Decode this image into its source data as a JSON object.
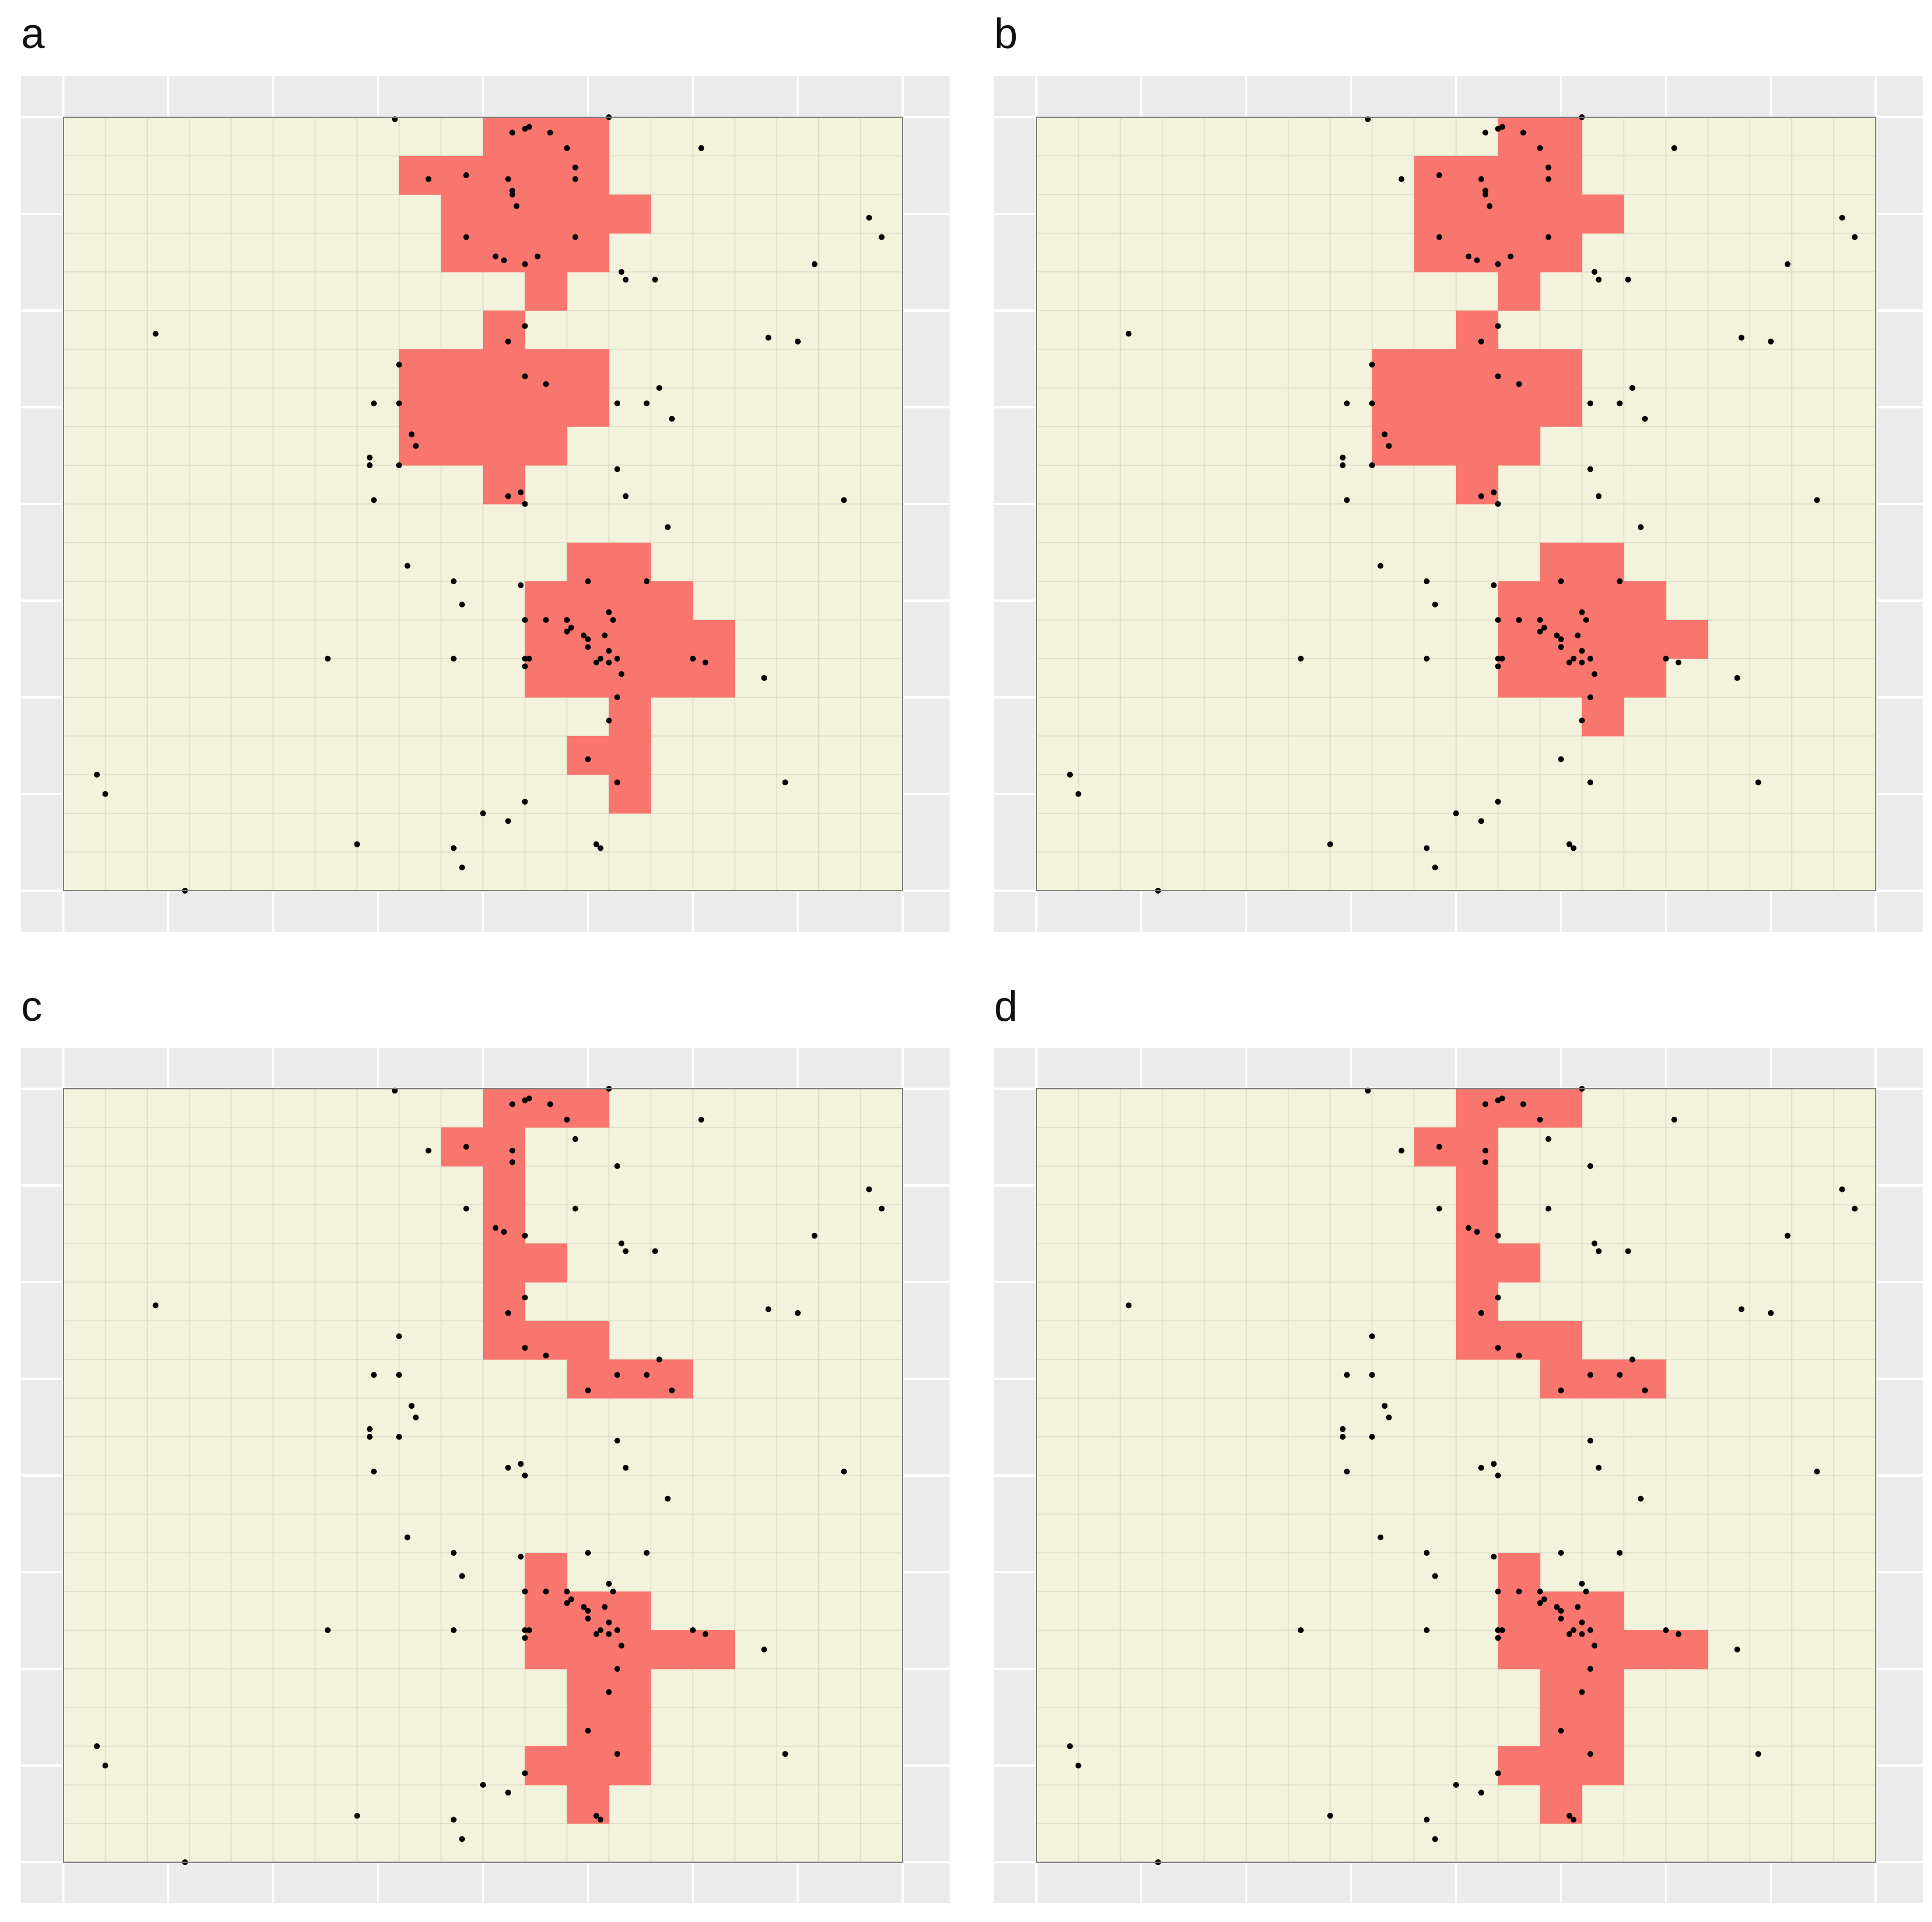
{
  "colors": {
    "region": "#f8766d",
    "field": "#f3f2dc",
    "panel_bg": "#ebebeb",
    "grid": "#dcdccb",
    "point": "#000000"
  },
  "chart_data": [
    {
      "type": "heatmap",
      "label": "a",
      "xlim": [
        0,
        20
      ],
      "ylim": [
        0,
        20
      ],
      "cells": [
        [
          10,
          0
        ],
        [
          11,
          0
        ],
        [
          12,
          0
        ],
        [
          8,
          1
        ],
        [
          9,
          1
        ],
        [
          10,
          1
        ],
        [
          11,
          1
        ],
        [
          12,
          1
        ],
        [
          9,
          2
        ],
        [
          10,
          2
        ],
        [
          11,
          2
        ],
        [
          12,
          2
        ],
        [
          13,
          2
        ],
        [
          9,
          3
        ],
        [
          10,
          3
        ],
        [
          11,
          3
        ],
        [
          12,
          3
        ],
        [
          11,
          4
        ],
        [
          10,
          5
        ],
        [
          8,
          6
        ],
        [
          9,
          6
        ],
        [
          10,
          6
        ],
        [
          11,
          6
        ],
        [
          12,
          6
        ],
        [
          8,
          7
        ],
        [
          9,
          7
        ],
        [
          10,
          7
        ],
        [
          11,
          7
        ],
        [
          12,
          7
        ],
        [
          8,
          8
        ],
        [
          9,
          8
        ],
        [
          10,
          8
        ],
        [
          11,
          8
        ],
        [
          10,
          9
        ],
        [
          12,
          11
        ],
        [
          13,
          11
        ],
        [
          11,
          12
        ],
        [
          12,
          12
        ],
        [
          13,
          12
        ],
        [
          14,
          12
        ],
        [
          11,
          13
        ],
        [
          12,
          13
        ],
        [
          13,
          13
        ],
        [
          14,
          13
        ],
        [
          15,
          13
        ],
        [
          11,
          14
        ],
        [
          12,
          14
        ],
        [
          13,
          14
        ],
        [
          14,
          14
        ],
        [
          15,
          14
        ],
        [
          13,
          15
        ],
        [
          12,
          16
        ],
        [
          13,
          16
        ],
        [
          13,
          17
        ]
      ],
      "points": []
    },
    {
      "type": "heatmap",
      "label": "b",
      "xlim": [
        0,
        20
      ],
      "ylim": [
        0,
        20
      ],
      "cells": [
        [
          11,
          0
        ],
        [
          12,
          0
        ],
        [
          9,
          1
        ],
        [
          10,
          1
        ],
        [
          11,
          1
        ],
        [
          12,
          1
        ],
        [
          9,
          2
        ],
        [
          10,
          2
        ],
        [
          11,
          2
        ],
        [
          12,
          2
        ],
        [
          13,
          2
        ],
        [
          9,
          3
        ],
        [
          10,
          3
        ],
        [
          11,
          3
        ],
        [
          12,
          3
        ],
        [
          11,
          4
        ],
        [
          10,
          5
        ],
        [
          8,
          6
        ],
        [
          9,
          6
        ],
        [
          10,
          6
        ],
        [
          11,
          6
        ],
        [
          12,
          6
        ],
        [
          8,
          7
        ],
        [
          9,
          7
        ],
        [
          10,
          7
        ],
        [
          11,
          7
        ],
        [
          12,
          7
        ],
        [
          8,
          8
        ],
        [
          9,
          8
        ],
        [
          10,
          8
        ],
        [
          11,
          8
        ],
        [
          10,
          9
        ],
        [
          12,
          11
        ],
        [
          13,
          11
        ],
        [
          11,
          12
        ],
        [
          12,
          12
        ],
        [
          13,
          12
        ],
        [
          14,
          12
        ],
        [
          11,
          13
        ],
        [
          12,
          13
        ],
        [
          13,
          13
        ],
        [
          14,
          13
        ],
        [
          15,
          13
        ],
        [
          11,
          14
        ],
        [
          12,
          14
        ],
        [
          13,
          14
        ],
        [
          14,
          14
        ],
        [
          13,
          15
        ]
      ],
      "points": []
    },
    {
      "type": "heatmap",
      "label": "c",
      "xlim": [
        0,
        20
      ],
      "ylim": [
        0,
        20
      ],
      "cells": [
        [
          10,
          0
        ],
        [
          11,
          0
        ],
        [
          12,
          0
        ],
        [
          9,
          1
        ],
        [
          10,
          1
        ],
        [
          10,
          2
        ],
        [
          10,
          3
        ],
        [
          10,
          4
        ],
        [
          11,
          4
        ],
        [
          10,
          5
        ],
        [
          10,
          6
        ],
        [
          11,
          6
        ],
        [
          12,
          6
        ],
        [
          12,
          7
        ],
        [
          13,
          7
        ],
        [
          14,
          7
        ],
        [
          11,
          12
        ],
        [
          11,
          13
        ],
        [
          12,
          13
        ],
        [
          13,
          13
        ],
        [
          11,
          14
        ],
        [
          12,
          14
        ],
        [
          13,
          14
        ],
        [
          14,
          14
        ],
        [
          15,
          14
        ],
        [
          12,
          15
        ],
        [
          13,
          15
        ],
        [
          12,
          16
        ],
        [
          13,
          16
        ],
        [
          11,
          17
        ],
        [
          12,
          17
        ],
        [
          13,
          17
        ],
        [
          12,
          18
        ]
      ],
      "points": []
    },
    {
      "type": "heatmap",
      "label": "d",
      "xlim": [
        0,
        20
      ],
      "ylim": [
        0,
        20
      ],
      "cells": [
        [
          10,
          0
        ],
        [
          11,
          0
        ],
        [
          12,
          0
        ],
        [
          9,
          1
        ],
        [
          10,
          1
        ],
        [
          10,
          2
        ],
        [
          10,
          3
        ],
        [
          10,
          4
        ],
        [
          11,
          4
        ],
        [
          10,
          5
        ],
        [
          10,
          6
        ],
        [
          11,
          6
        ],
        [
          12,
          6
        ],
        [
          12,
          7
        ],
        [
          13,
          7
        ],
        [
          14,
          7
        ],
        [
          11,
          12
        ],
        [
          11,
          13
        ],
        [
          12,
          13
        ],
        [
          13,
          13
        ],
        [
          11,
          14
        ],
        [
          12,
          14
        ],
        [
          13,
          14
        ],
        [
          14,
          14
        ],
        [
          15,
          14
        ],
        [
          12,
          15
        ],
        [
          13,
          15
        ],
        [
          12,
          16
        ],
        [
          13,
          16
        ],
        [
          11,
          17
        ],
        [
          12,
          17
        ],
        [
          13,
          17
        ],
        [
          12,
          18
        ]
      ],
      "points": []
    }
  ],
  "points": [
    [
      7.9,
      0.05
    ],
    [
      10.7,
      0.4
    ],
    [
      11.0,
      0.3
    ],
    [
      11.1,
      0.25
    ],
    [
      11.6,
      0.4
    ],
    [
      12.0,
      0.8
    ],
    [
      13.0,
      0.0
    ],
    [
      15.2,
      0.8
    ],
    [
      8.7,
      1.6
    ],
    [
      9.6,
      1.5
    ],
    [
      10.6,
      1.6
    ],
    [
      10.7,
      1.9
    ],
    [
      12.2,
      1.3
    ],
    [
      12.2,
      1.6
    ],
    [
      10.7,
      2.0
    ],
    [
      10.8,
      2.3
    ],
    [
      19.2,
      2.6
    ],
    [
      19.5,
      3.1
    ],
    [
      9.6,
      3.1
    ],
    [
      10.3,
      3.6
    ],
    [
      10.5,
      3.7
    ],
    [
      11.0,
      3.8
    ],
    [
      11.3,
      3.6
    ],
    [
      12.2,
      3.1
    ],
    [
      13.3,
      4.0
    ],
    [
      13.4,
      4.2
    ],
    [
      14.1,
      4.2
    ],
    [
      17.9,
      3.8
    ],
    [
      2.2,
      5.6
    ],
    [
      11.0,
      5.4
    ],
    [
      10.6,
      5.8
    ],
    [
      16.8,
      5.7
    ],
    [
      17.5,
      5.8
    ],
    [
      8.0,
      6.4
    ],
    [
      7.4,
      7.4
    ],
    [
      8.0,
      7.4
    ],
    [
      11.0,
      6.7
    ],
    [
      11.5,
      6.9
    ],
    [
      13.2,
      7.4
    ],
    [
      13.9,
      7.4
    ],
    [
      14.2,
      7.0
    ],
    [
      14.5,
      7.8
    ],
    [
      8.3,
      8.2
    ],
    [
      8.4,
      8.5
    ],
    [
      7.3,
      8.8
    ],
    [
      7.3,
      9.0
    ],
    [
      8.0,
      9.0
    ],
    [
      7.4,
      9.9
    ],
    [
      10.6,
      9.8
    ],
    [
      10.9,
      9.7
    ],
    [
      11.0,
      10.0
    ],
    [
      13.2,
      9.1
    ],
    [
      13.4,
      9.8
    ],
    [
      18.6,
      9.9
    ],
    [
      14.4,
      10.6
    ],
    [
      8.2,
      11.6
    ],
    [
      9.3,
      12.0
    ],
    [
      9.5,
      12.6
    ],
    [
      10.9,
      12.1
    ],
    [
      12.5,
      12.0
    ],
    [
      13.9,
      12.0
    ],
    [
      11.0,
      13.0
    ],
    [
      11.5,
      13.0
    ],
    [
      12.0,
      13.0
    ],
    [
      12.1,
      13.2
    ],
    [
      12.4,
      13.4
    ],
    [
      12.5,
      13.5
    ],
    [
      13.0,
      12.8
    ],
    [
      13.1,
      13.0
    ],
    [
      12.9,
      13.4
    ],
    [
      13.0,
      13.8
    ],
    [
      13.2,
      14.0
    ],
    [
      13.0,
      14.1
    ],
    [
      12.7,
      14.1
    ],
    [
      12.5,
      13.7
    ],
    [
      11.0,
      14.0
    ],
    [
      11.1,
      14.0
    ],
    [
      12.0,
      13.3
    ],
    [
      15.0,
      14.0
    ],
    [
      15.3,
      14.1
    ],
    [
      6.3,
      14.0
    ],
    [
      9.3,
      14.0
    ],
    [
      12.8,
      14.0
    ],
    [
      13.3,
      14.4
    ],
    [
      11.0,
      14.2
    ],
    [
      16.7,
      14.5
    ],
    [
      13.2,
      15.0
    ],
    [
      13.0,
      15.6
    ],
    [
      12.5,
      16.6
    ],
    [
      0.8,
      17.0
    ],
    [
      1.0,
      17.5
    ],
    [
      17.2,
      17.2
    ],
    [
      13.2,
      17.2
    ],
    [
      11.0,
      17.7
    ],
    [
      10.0,
      18.0
    ],
    [
      10.6,
      18.2
    ],
    [
      7.0,
      18.8
    ],
    [
      9.3,
      18.9
    ],
    [
      9.5,
      19.4
    ],
    [
      12.7,
      18.8
    ],
    [
      12.8,
      18.9
    ],
    [
      2.9,
      20.0
    ]
  ],
  "panel_c_points": [
    [
      7.9,
      0.05
    ],
    [
      10.7,
      0.4
    ],
    [
      11.0,
      0.3
    ],
    [
      11.1,
      0.25
    ],
    [
      11.6,
      0.4
    ],
    [
      12.0,
      0.8
    ],
    [
      13.0,
      0.0
    ],
    [
      15.2,
      0.8
    ],
    [
      8.7,
      1.6
    ],
    [
      9.6,
      1.5
    ],
    [
      10.7,
      1.6
    ],
    [
      10.7,
      1.9
    ],
    [
      12.2,
      1.3
    ],
    [
      13.2,
      2.0
    ],
    [
      19.2,
      2.6
    ],
    [
      19.5,
      3.1
    ],
    [
      9.6,
      3.1
    ],
    [
      10.3,
      3.6
    ],
    [
      10.5,
      3.7
    ],
    [
      11.0,
      3.8
    ],
    [
      12.2,
      3.1
    ],
    [
      13.3,
      4.0
    ],
    [
      13.4,
      4.2
    ],
    [
      14.1,
      4.2
    ],
    [
      17.9,
      3.8
    ],
    [
      2.2,
      5.6
    ],
    [
      11.0,
      5.4
    ],
    [
      10.6,
      5.8
    ],
    [
      16.8,
      5.7
    ],
    [
      17.5,
      5.8
    ],
    [
      8.0,
      6.4
    ],
    [
      7.4,
      7.4
    ],
    [
      8.0,
      7.4
    ],
    [
      11.0,
      6.7
    ],
    [
      11.5,
      6.9
    ],
    [
      13.2,
      7.4
    ],
    [
      13.9,
      7.4
    ],
    [
      14.2,
      7.0
    ],
    [
      14.5,
      7.8
    ],
    [
      12.5,
      7.8
    ],
    [
      8.3,
      8.2
    ],
    [
      8.4,
      8.5
    ],
    [
      7.3,
      8.8
    ],
    [
      7.3,
      9.0
    ],
    [
      8.0,
      9.0
    ],
    [
      7.4,
      9.9
    ],
    [
      10.6,
      9.8
    ],
    [
      10.9,
      9.7
    ],
    [
      11.0,
      10.0
    ],
    [
      13.2,
      9.1
    ],
    [
      13.4,
      9.8
    ],
    [
      18.6,
      9.9
    ],
    [
      14.4,
      10.6
    ],
    [
      8.2,
      11.6
    ],
    [
      9.3,
      12.0
    ],
    [
      9.5,
      12.6
    ],
    [
      10.9,
      12.1
    ],
    [
      12.5,
      12.0
    ],
    [
      13.9,
      12.0
    ],
    [
      11.0,
      13.0
    ],
    [
      11.5,
      13.0
    ],
    [
      12.0,
      13.0
    ],
    [
      12.1,
      13.2
    ],
    [
      12.4,
      13.4
    ],
    [
      12.5,
      13.5
    ],
    [
      13.0,
      12.8
    ],
    [
      13.1,
      13.0
    ],
    [
      12.9,
      13.4
    ],
    [
      13.0,
      13.8
    ],
    [
      13.2,
      14.0
    ],
    [
      13.0,
      14.1
    ],
    [
      12.7,
      14.1
    ],
    [
      12.5,
      13.7
    ],
    [
      11.0,
      14.0
    ],
    [
      11.1,
      14.0
    ],
    [
      12.0,
      13.3
    ],
    [
      15.0,
      14.0
    ],
    [
      15.3,
      14.1
    ],
    [
      6.3,
      14.0
    ],
    [
      9.3,
      14.0
    ],
    [
      12.8,
      14.0
    ],
    [
      13.3,
      14.4
    ],
    [
      11.0,
      14.2
    ],
    [
      16.7,
      14.5
    ],
    [
      13.2,
      15.0
    ],
    [
      13.0,
      15.6
    ],
    [
      12.5,
      16.6
    ],
    [
      0.8,
      17.0
    ],
    [
      1.0,
      17.5
    ],
    [
      17.2,
      17.2
    ],
    [
      13.2,
      17.2
    ],
    [
      11.0,
      17.7
    ],
    [
      10.0,
      18.0
    ],
    [
      10.6,
      18.2
    ],
    [
      7.0,
      18.8
    ],
    [
      9.3,
      18.9
    ],
    [
      9.5,
      19.4
    ],
    [
      12.7,
      18.8
    ],
    [
      12.8,
      18.9
    ],
    [
      2.9,
      20.0
    ]
  ]
}
